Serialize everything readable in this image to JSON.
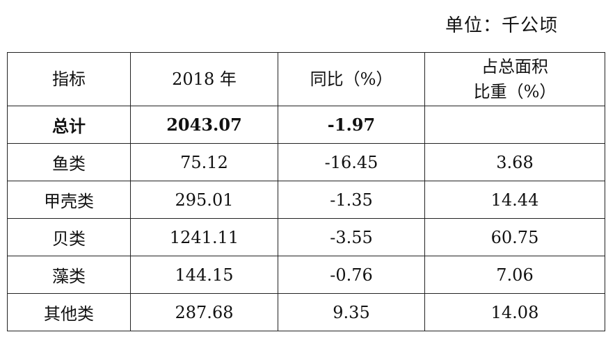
{
  "unit": "单位：千公顷",
  "table": {
    "headers": {
      "indicator": "指标",
      "year": "2018 年",
      "yoy": "同比（%）",
      "share_line1": "占总面积",
      "share_line2": "比重（%）"
    },
    "rows": [
      {
        "name": "总计",
        "value": "2043.07",
        "yoy": "-1.97",
        "share": ""
      },
      {
        "name": "鱼类",
        "value": "75.12",
        "yoy": "-16.45",
        "share": "3.68"
      },
      {
        "name": "甲壳类",
        "value": "295.01",
        "yoy": "-1.35",
        "share": "14.44"
      },
      {
        "name": "贝类",
        "value": "1241.11",
        "yoy": "-3.55",
        "share": "60.75"
      },
      {
        "name": "藻类",
        "value": "144.15",
        "yoy": "-0.76",
        "share": "7.06"
      },
      {
        "name": "其他类",
        "value": "287.68",
        "yoy": "9.35",
        "share": "14.08"
      }
    ]
  }
}
